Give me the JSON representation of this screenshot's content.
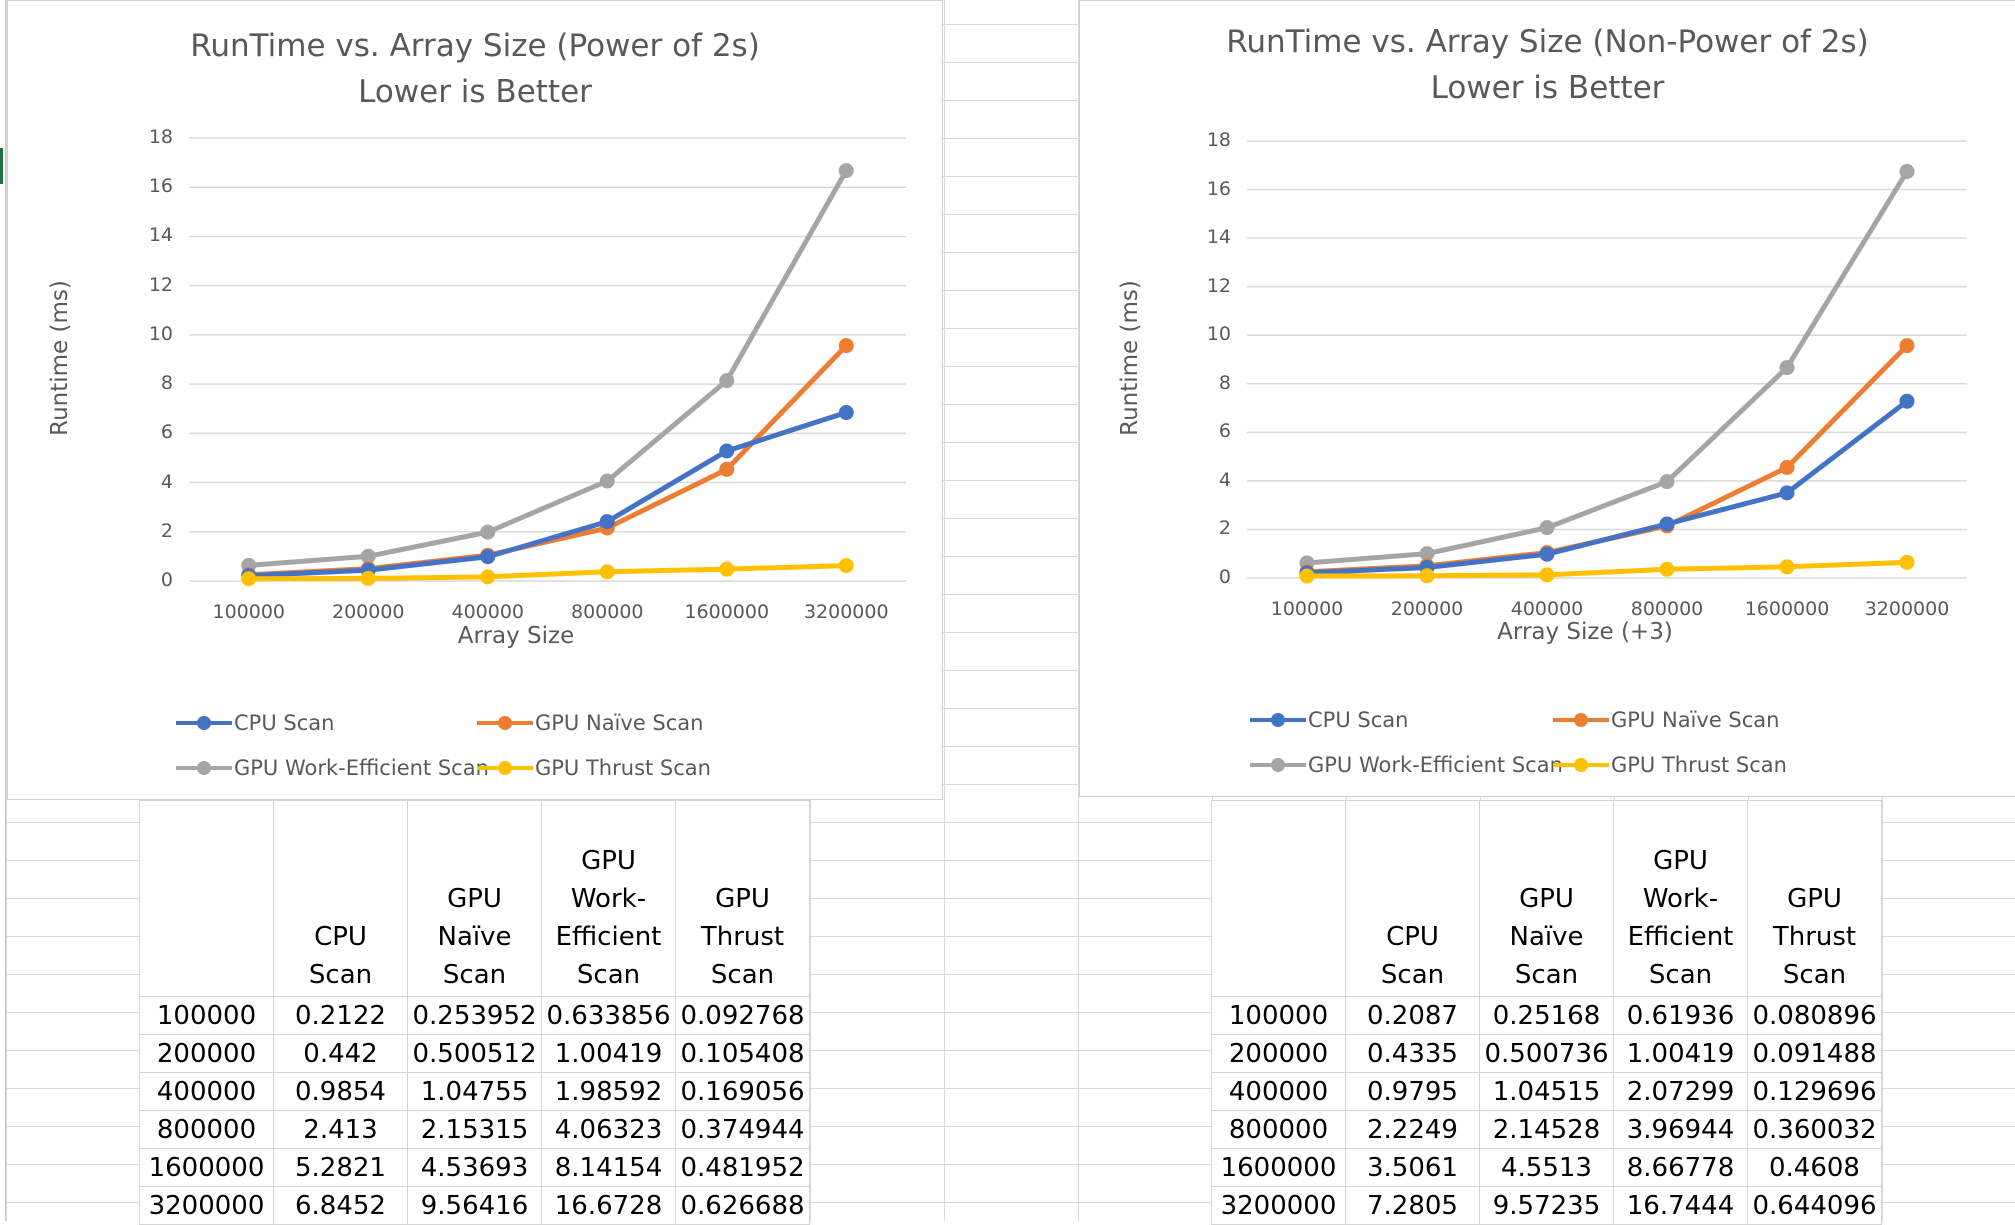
{
  "colors": {
    "cpu": "#4472C4",
    "naive": "#ED7D31",
    "work_efficient": "#A5A5A5",
    "thrust": "#FFC000",
    "gridline": "#D9D9D9",
    "text": "#595959"
  },
  "chart_data": [
    {
      "type": "line",
      "title": "RunTime vs. Array Size (Power of 2s)",
      "subtitle": "Lower is Better",
      "xlabel": "Array Size",
      "ylabel": "Runtime (ms)",
      "categories": [
        "100000",
        "200000",
        "400000",
        "800000",
        "1600000",
        "3200000"
      ],
      "ylim": [
        0,
        18
      ],
      "yticks": [
        0,
        2,
        4,
        6,
        8,
        10,
        12,
        14,
        16,
        18
      ],
      "grid": true,
      "legend_position": "bottom",
      "series": [
        {
          "name": "CPU Scan",
          "color_key": "cpu",
          "values": [
            0.2122,
            0.442,
            0.9854,
            2.413,
            5.2821,
            6.8452
          ]
        },
        {
          "name": "GPU Naïve Scan",
          "color_key": "naive",
          "values": [
            0.253952,
            0.500512,
            1.04755,
            2.15315,
            4.53693,
            9.56416
          ]
        },
        {
          "name": "GPU Work-Efficient Scan",
          "color_key": "work_efficient",
          "values": [
            0.633856,
            1.00419,
            1.98592,
            4.06323,
            8.14154,
            16.6728
          ]
        },
        {
          "name": "GPU Thrust Scan",
          "color_key": "thrust",
          "values": [
            0.092768,
            0.105408,
            0.169056,
            0.374944,
            0.481952,
            0.626688
          ]
        }
      ]
    },
    {
      "type": "line",
      "title": "RunTime vs. Array Size (Non-Power of 2s)",
      "subtitle": "Lower is Better",
      "xlabel": "Array Size (+3)",
      "ylabel": "Runtime (ms)",
      "categories": [
        "100000",
        "200000",
        "400000",
        "800000",
        "1600000",
        "3200000"
      ],
      "ylim": [
        0,
        18
      ],
      "yticks": [
        0,
        2,
        4,
        6,
        8,
        10,
        12,
        14,
        16,
        18
      ],
      "grid": true,
      "legend_position": "bottom",
      "series": [
        {
          "name": "CPU Scan",
          "color_key": "cpu",
          "values": [
            0.2087,
            0.4335,
            0.9795,
            2.2249,
            3.5061,
            7.2805
          ]
        },
        {
          "name": "GPU Naïve Scan",
          "color_key": "naive",
          "values": [
            0.25168,
            0.500736,
            1.04515,
            2.14528,
            4.5513,
            9.57235
          ]
        },
        {
          "name": "GPU Work-Efficient Scan",
          "color_key": "work_efficient",
          "values": [
            0.61936,
            1.00419,
            2.07299,
            3.96944,
            8.66778,
            16.7444
          ]
        },
        {
          "name": "GPU Thrust Scan",
          "color_key": "thrust",
          "values": [
            0.080896,
            0.091488,
            0.129696,
            0.360032,
            0.4608,
            0.644096
          ]
        }
      ]
    }
  ],
  "tables": [
    {
      "headers": [
        "",
        "CPU Scan",
        "GPU Naïve Scan",
        "GPU Work-Efficient Scan",
        "GPU Thrust Scan"
      ],
      "rows": [
        [
          "100000",
          "0.2122",
          "0.253952",
          "0.633856",
          "0.092768"
        ],
        [
          "200000",
          "0.442",
          "0.500512",
          "1.00419",
          "0.105408"
        ],
        [
          "400000",
          "0.9854",
          "1.04755",
          "1.98592",
          "0.169056"
        ],
        [
          "800000",
          "2.413",
          "2.15315",
          "4.06323",
          "0.374944"
        ],
        [
          "1600000",
          "5.2821",
          "4.53693",
          "8.14154",
          "0.481952"
        ],
        [
          "3200000",
          "6.8452",
          "9.56416",
          "16.6728",
          "0.626688"
        ]
      ]
    },
    {
      "headers": [
        "",
        "CPU Scan",
        "GPU Naïve Scan",
        "GPU Work-Efficient Scan",
        "GPU Thrust Scan"
      ],
      "rows": [
        [
          "100000",
          "0.2087",
          "0.25168",
          "0.61936",
          "0.080896"
        ],
        [
          "200000",
          "0.4335",
          "0.500736",
          "1.00419",
          "0.091488"
        ],
        [
          "400000",
          "0.9795",
          "1.04515",
          "2.07299",
          "0.129696"
        ],
        [
          "800000",
          "2.2249",
          "2.14528",
          "3.96944",
          "0.360032"
        ],
        [
          "1600000",
          "3.5061",
          "4.5513",
          "8.66778",
          "0.4608"
        ],
        [
          "3200000",
          "7.2805",
          "9.57235",
          "16.7444",
          "0.644096"
        ]
      ]
    }
  ]
}
